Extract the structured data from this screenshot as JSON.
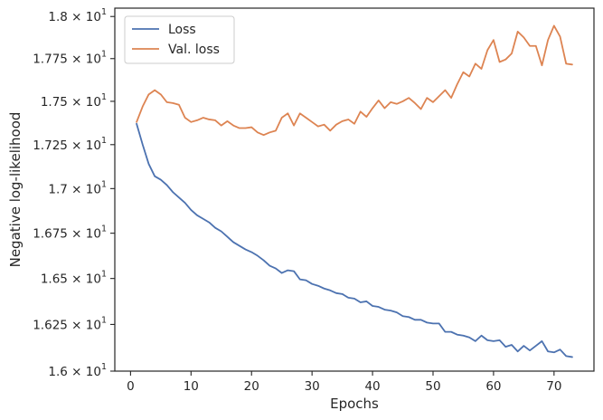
{
  "chart_data": {
    "type": "line",
    "title": "",
    "xlabel": "Epochs",
    "ylabel": "Negative log-likelihood",
    "xlim": [
      -2.6,
      76.6
    ],
    "ylim": [
      16.0,
      18.05
    ],
    "yscale": "log",
    "grid": false,
    "legend_position": "top-left",
    "x_ticks": [
      0,
      10,
      20,
      30,
      40,
      50,
      60,
      70
    ],
    "y_ticks": [
      {
        "value": 16.0,
        "mantissa": "1.6",
        "base": "10",
        "exp": "1"
      },
      {
        "value": 16.25,
        "mantissa": "1.625",
        "base": "10",
        "exp": "1"
      },
      {
        "value": 16.5,
        "mantissa": "1.65",
        "base": "10",
        "exp": "1"
      },
      {
        "value": 16.75,
        "mantissa": "1.675",
        "base": "10",
        "exp": "1"
      },
      {
        "value": 17.0,
        "mantissa": "1.7",
        "base": "10",
        "exp": "1"
      },
      {
        "value": 17.25,
        "mantissa": "1.725",
        "base": "10",
        "exp": "1"
      },
      {
        "value": 17.5,
        "mantissa": "1.75",
        "base": "10",
        "exp": "1"
      },
      {
        "value": 17.75,
        "mantissa": "1.775",
        "base": "10",
        "exp": "1"
      },
      {
        "value": 18.0,
        "mantissa": "1.8",
        "base": "10",
        "exp": "1"
      }
    ],
    "x": [
      1,
      2,
      3,
      4,
      5,
      6,
      7,
      8,
      9,
      10,
      11,
      12,
      13,
      14,
      15,
      16,
      17,
      18,
      19,
      20,
      21,
      22,
      23,
      24,
      25,
      26,
      27,
      28,
      29,
      30,
      31,
      32,
      33,
      34,
      35,
      36,
      37,
      38,
      39,
      40,
      41,
      42,
      43,
      44,
      45,
      46,
      47,
      48,
      49,
      50,
      51,
      52,
      53,
      54,
      55,
      56,
      57,
      58,
      59,
      60,
      61,
      62,
      63,
      64,
      65,
      66,
      67,
      68,
      69,
      70,
      71,
      72,
      73
    ],
    "series": [
      {
        "name": "Loss",
        "color": "#4c72b0",
        "values": [
          17.37,
          17.25,
          17.14,
          17.07,
          17.05,
          17.02,
          16.98,
          16.95,
          16.92,
          16.88,
          16.85,
          16.83,
          16.81,
          16.78,
          16.76,
          16.73,
          16.7,
          16.68,
          16.66,
          16.645,
          16.625,
          16.6,
          16.57,
          16.555,
          16.53,
          16.545,
          16.54,
          16.495,
          16.49,
          16.47,
          16.46,
          16.445,
          16.435,
          16.42,
          16.415,
          16.395,
          16.39,
          16.37,
          16.375,
          16.35,
          16.345,
          16.33,
          16.325,
          16.315,
          16.295,
          16.29,
          16.275,
          16.275,
          16.26,
          16.255,
          16.255,
          16.21,
          16.21,
          16.195,
          16.19,
          16.18,
          16.16,
          16.19,
          16.165,
          16.16,
          16.165,
          16.13,
          16.14,
          16.105,
          16.135,
          16.11,
          16.135,
          16.16,
          16.105,
          16.1,
          16.115,
          16.08,
          16.075
        ]
      },
      {
        "name": "Val. loss",
        "color": "#dd8452",
        "values": [
          17.38,
          17.47,
          17.54,
          17.565,
          17.54,
          17.495,
          17.49,
          17.48,
          17.405,
          17.38,
          17.39,
          17.405,
          17.395,
          17.39,
          17.36,
          17.385,
          17.36,
          17.345,
          17.345,
          17.35,
          17.32,
          17.305,
          17.32,
          17.33,
          17.405,
          17.43,
          17.36,
          17.43,
          17.405,
          17.38,
          17.355,
          17.365,
          17.33,
          17.365,
          17.385,
          17.395,
          17.37,
          17.44,
          17.41,
          17.46,
          17.505,
          17.46,
          17.495,
          17.485,
          17.5,
          17.52,
          17.49,
          17.455,
          17.52,
          17.495,
          17.53,
          17.565,
          17.52,
          17.6,
          17.67,
          17.645,
          17.72,
          17.69,
          17.8,
          17.86,
          17.73,
          17.745,
          17.78,
          17.91,
          17.875,
          17.825,
          17.825,
          17.71,
          17.86,
          17.945,
          17.88,
          17.72,
          17.715
        ]
      }
    ]
  }
}
